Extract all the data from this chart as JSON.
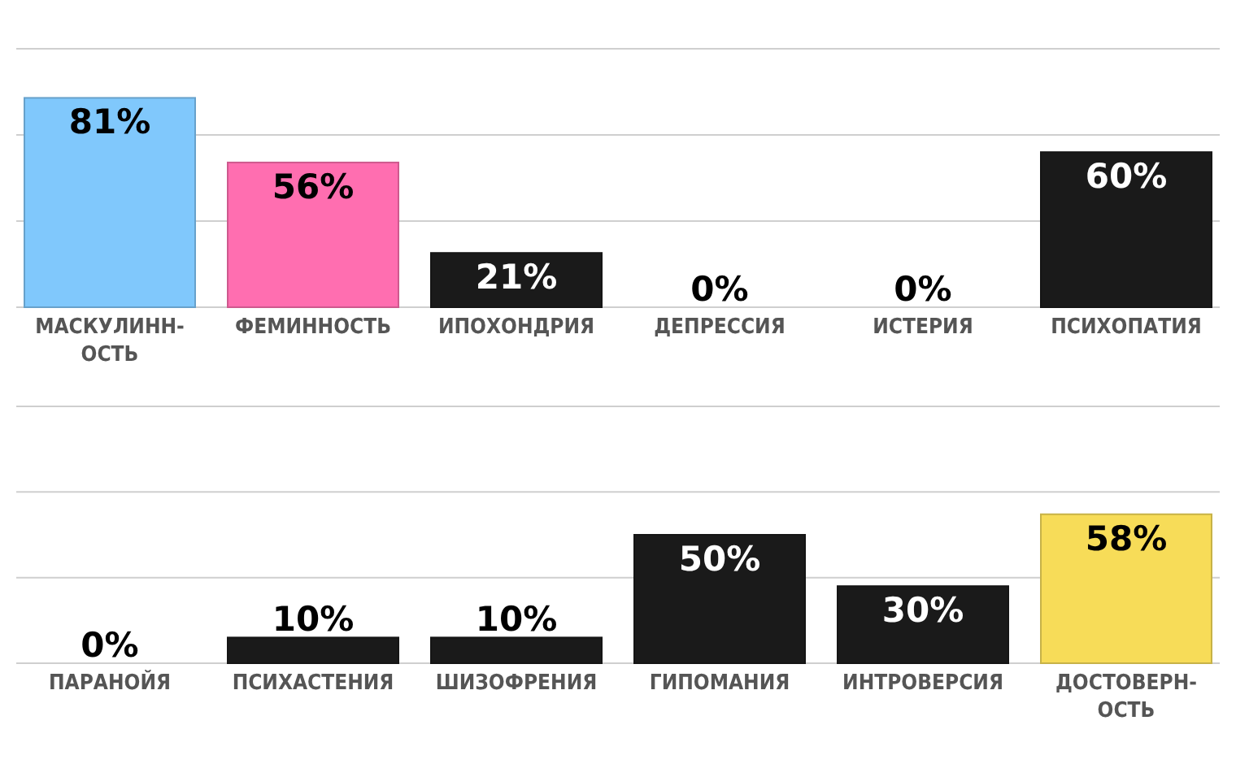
{
  "chart_data": [
    {
      "type": "bar",
      "categories": [
        "МАСКУЛИНН-\nОСТЬ",
        "ФЕМИННОСТЬ",
        "ИПОХОНДРИЯ",
        "ДЕПРЕССИЯ",
        "ИСТЕРИЯ",
        "ПСИХОПАТИЯ"
      ],
      "values": [
        81,
        56,
        21,
        0,
        0,
        60
      ],
      "colors": [
        "#80c8fc",
        "#ff6eb0",
        "#1a1a1a",
        "#1a1a1a",
        "#1a1a1a",
        "#1a1a1a"
      ],
      "ylim": [
        0,
        100
      ],
      "yticks": [
        {
          "value": 0,
          "label": null
        },
        {
          "value": 33.3,
          "label": null
        },
        {
          "value": 66.7,
          "label": null
        },
        {
          "value": 100,
          "label": null
        }
      ],
      "grid": "y",
      "tick_labels": "x",
      "value_labels": [
        "81%",
        "56%",
        "21%",
        "0%",
        "0%",
        "60%"
      ]
    },
    {
      "type": "bar",
      "categories": [
        "ПАРАНОЙЯ",
        "ПСИХАСТЕНИЯ",
        "ШИЗОФРЕНИЯ",
        "ГИПОМАНИЯ",
        "ИНТРОВЕРСИЯ",
        "ДОСТОВЕРН-\nОСТЬ"
      ],
      "values": [
        0,
        10,
        10,
        50,
        30,
        58
      ],
      "colors": [
        "#1a1a1a",
        "#1a1a1a",
        "#1a1a1a",
        "#1a1a1a",
        "#1a1a1a",
        "#f7dc58"
      ],
      "ylim": [
        0,
        100
      ],
      "yticks": [
        {
          "value": 0,
          "label": null
        },
        {
          "value": 33.3,
          "label": null
        },
        {
          "value": 66.7,
          "label": null
        },
        {
          "value": 100,
          "label": null
        }
      ],
      "grid": "y",
      "tick_labels": "x",
      "value_labels": [
        "0%",
        "10%",
        "10%",
        "50%",
        "30%",
        "58%"
      ]
    }
  ]
}
